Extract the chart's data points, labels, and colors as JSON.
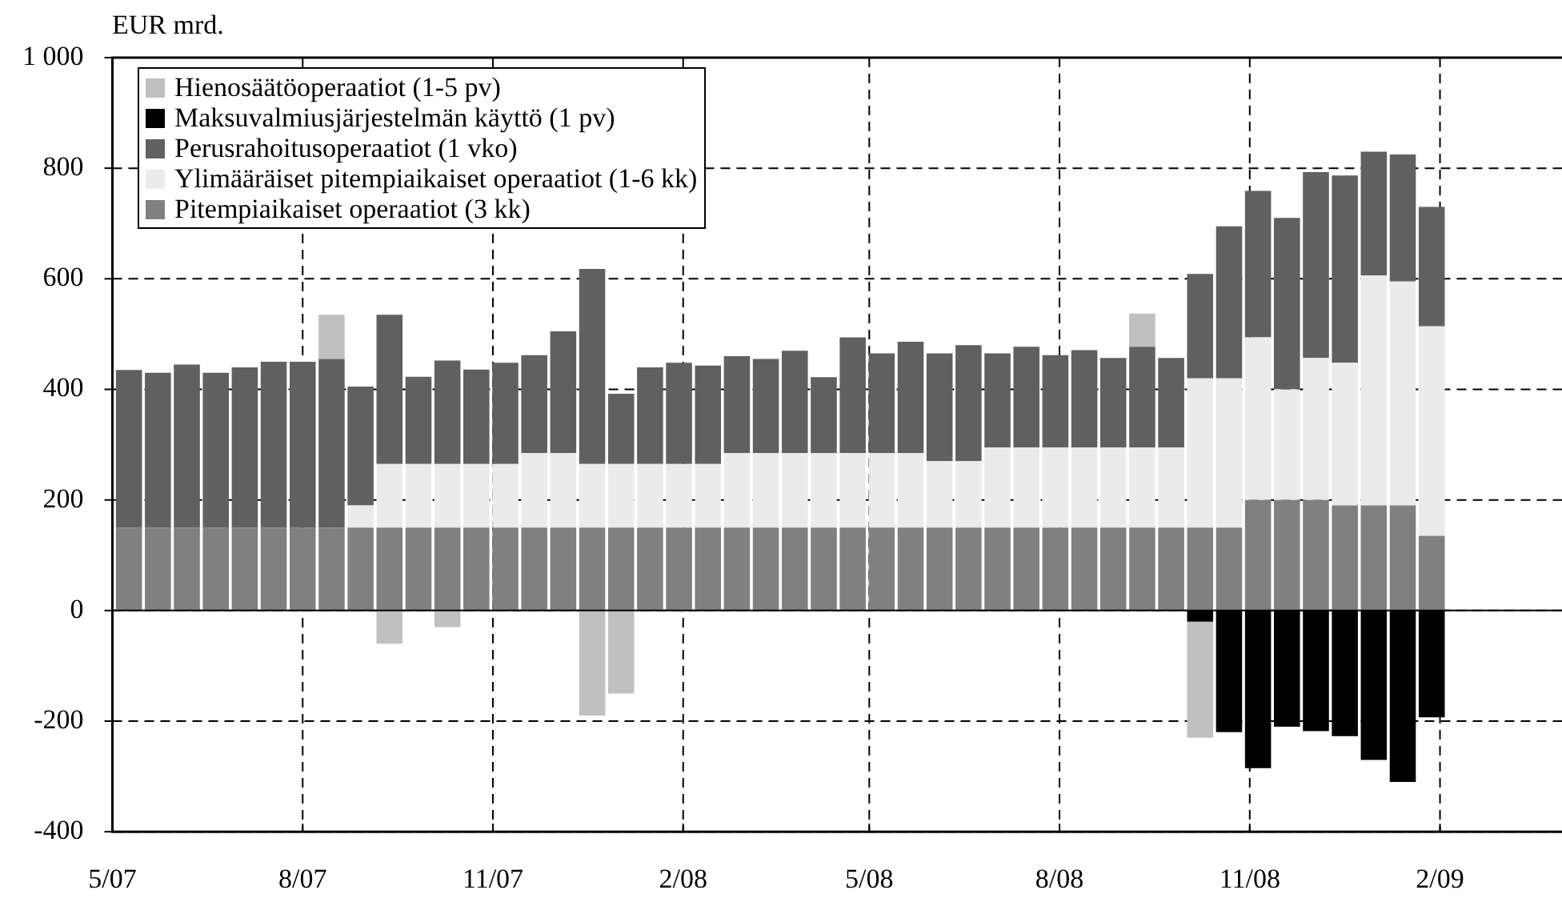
{
  "chart_data": {
    "type": "bar",
    "stacked": true,
    "ylabel": "EUR mrd.",
    "x": [
      "2007-05-09",
      "2007-05-23",
      "2007-06-06",
      "2007-06-20",
      "2007-07-04",
      "2007-07-18",
      "2007-08-01",
      "2007-08-15",
      "2007-08-29",
      "2007-09-12",
      "2007-09-26",
      "2007-10-10",
      "2007-10-24",
      "2007-11-07",
      "2007-11-21",
      "2007-12-05",
      "2007-12-19",
      "2008-01-02",
      "2008-01-16",
      "2008-01-30",
      "2008-02-13",
      "2008-02-27",
      "2008-03-12",
      "2008-03-26",
      "2008-04-09",
      "2008-04-23",
      "2008-05-07",
      "2008-05-21",
      "2008-06-04",
      "2008-06-18",
      "2008-07-02",
      "2008-07-16",
      "2008-07-30",
      "2008-08-13",
      "2008-08-27",
      "2008-09-10",
      "2008-09-24",
      "2008-10-08",
      "2008-10-22",
      "2008-11-05",
      "2008-11-19",
      "2008-12-03",
      "2008-12-17",
      "2008-12-31",
      "2009-01-14",
      "2009-01-28"
    ],
    "series": [
      {
        "name": "Pitempiaikaiset operaatiot (3 kk)",
        "color": "#808080",
        "values": [
          150,
          150,
          150,
          150,
          150,
          150,
          150,
          150,
          150,
          150,
          150,
          150,
          150,
          150,
          150,
          150,
          150,
          150,
          150,
          150,
          150,
          150,
          150,
          150,
          150,
          150,
          150,
          150,
          150,
          150,
          150,
          150,
          150,
          150,
          150,
          150,
          150,
          150,
          150,
          200,
          200,
          200,
          190,
          190,
          190,
          135
        ]
      },
      {
        "name": "Ylimääräiset pitempiaikaiset operaatiot (1-6 kk)",
        "color": "#ebebeb",
        "values": [
          0,
          0,
          0,
          0,
          0,
          0,
          0,
          0,
          40,
          115,
          115,
          115,
          115,
          115,
          135,
          135,
          115,
          115,
          115,
          115,
          115,
          135,
          135,
          135,
          135,
          135,
          135,
          135,
          120,
          120,
          145,
          145,
          145,
          145,
          145,
          145,
          145,
          270,
          270,
          294,
          200,
          257,
          258,
          416,
          405,
          379
        ]
      },
      {
        "name": "Perusrahoitusoperaatiot (1 vko)",
        "color": "#606060",
        "values": [
          285,
          280,
          295,
          280,
          290,
          300,
          300,
          305,
          215,
          270,
          158,
          187,
          171,
          183,
          177,
          220,
          353,
          127,
          175,
          183,
          178,
          175,
          170,
          185,
          137,
          209,
          180,
          201,
          195,
          210,
          170,
          182,
          167,
          176,
          162,
          182,
          162,
          189,
          275,
          265,
          310,
          336,
          339,
          224,
          230,
          216
        ]
      },
      {
        "name": "Maksuvalmiusjärjestelmän käyttö (1 pv)",
        "color": "#000000",
        "values": [
          0,
          0,
          0,
          0,
          0,
          0,
          0,
          0,
          0,
          0,
          0,
          0,
          0,
          0,
          0,
          0,
          0,
          0,
          0,
          0,
          0,
          0,
          0,
          0,
          0,
          0,
          0,
          0,
          0,
          0,
          0,
          0,
          0,
          0,
          0,
          0,
          0,
          -20,
          -220,
          -285,
          -210,
          -218,
          -227,
          -270,
          -310,
          -193
        ]
      },
      {
        "name": "Hienosäätöoperaatiot (1-5 pv)",
        "color": "#c0c0c0",
        "values": [
          0,
          0,
          0,
          0,
          0,
          0,
          0,
          80,
          0,
          -60,
          0,
          -30,
          0,
          0,
          0,
          0,
          -190,
          -150,
          0,
          0,
          0,
          0,
          0,
          0,
          0,
          0,
          0,
          0,
          0,
          0,
          0,
          0,
          0,
          0,
          0,
          60,
          0,
          -210,
          0,
          0,
          0,
          0,
          0,
          0,
          0,
          0
        ]
      }
    ],
    "xlim": [
      "2007-05-01",
      "2009-04-01"
    ],
    "xticks": [
      {
        "value": "2007-05",
        "label": "5/07"
      },
      {
        "value": "2007-08",
        "label": "8/07"
      },
      {
        "value": "2007-11",
        "label": "11/07"
      },
      {
        "value": "2008-02",
        "label": "2/08"
      },
      {
        "value": "2008-05",
        "label": "5/08"
      },
      {
        "value": "2008-08",
        "label": "8/08"
      },
      {
        "value": "2008-11",
        "label": "11/08"
      },
      {
        "value": "2009-02",
        "label": "2/09"
      }
    ],
    "ylim": [
      -400,
      1000
    ],
    "yticks": [
      -400,
      -200,
      0,
      200,
      400,
      600,
      800,
      {
        "value": 1000,
        "label": "1 000"
      }
    ],
    "ref_lines": [
      {
        "axis": "y",
        "value": 0,
        "color": "#000000",
        "line_style": "solid"
      }
    ],
    "grid": true,
    "legend": "top left"
  }
}
